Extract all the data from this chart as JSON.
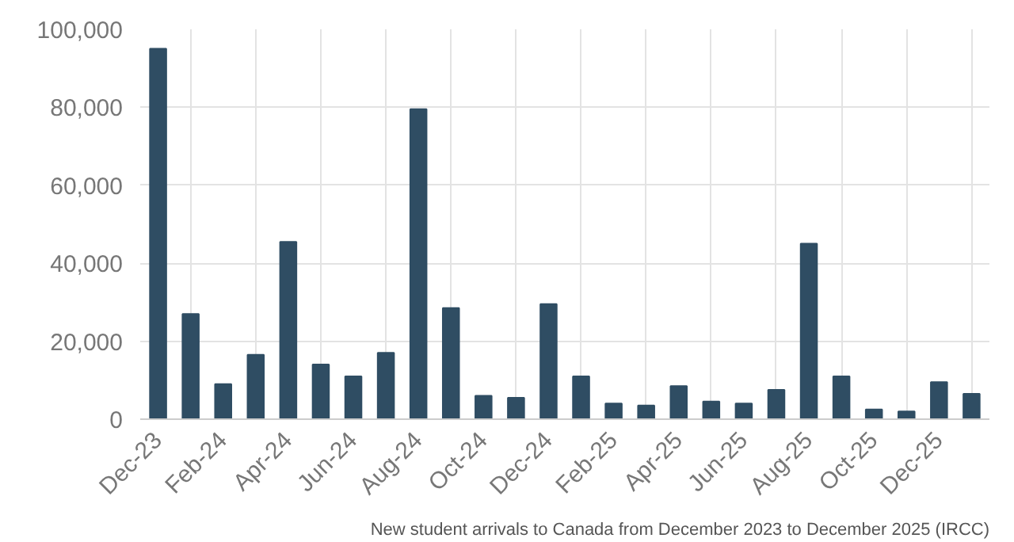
{
  "chart_data": {
    "type": "bar",
    "categories": [
      "Dec-23",
      null,
      "Feb-24",
      null,
      "Apr-24",
      null,
      "Jun-24",
      null,
      "Aug-24",
      null,
      "Oct-24",
      null,
      "Dec-24",
      null,
      "Feb-25",
      null,
      "Apr-25",
      null,
      "Jun-25",
      null,
      "Aug-25",
      null,
      "Oct-25",
      null,
      "Dec-25",
      null
    ],
    "values": [
      95000,
      27000,
      9000,
      16500,
      45500,
      14000,
      11000,
      17000,
      79500,
      28500,
      6000,
      5500,
      29500,
      11000,
      4000,
      3500,
      8500,
      4500,
      4000,
      7500,
      45000,
      11000,
      2500,
      2000,
      9500,
      6500
    ],
    "color": "#2f4d63",
    "ylim": [
      0,
      100000
    ],
    "yticks": [
      {
        "value": 0,
        "label": "0"
      },
      {
        "value": 20000,
        "label": "20,000"
      },
      {
        "value": 40000,
        "label": "40,000"
      },
      {
        "value": 60000,
        "label": "60,000"
      },
      {
        "value": 80000,
        "label": "80,000"
      },
      {
        "value": 100000,
        "label": "100,000"
      }
    ],
    "grid": true,
    "annotations": [
      "New student arrivals to Canada from December 2023 to December 2025 (IRCC)"
    ]
  }
}
